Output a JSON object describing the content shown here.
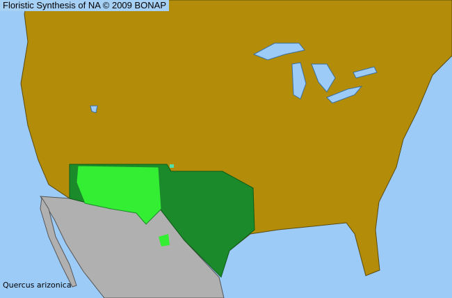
{
  "header": {
    "title": "Floristic Synthesis of NA © 2009 BONAP"
  },
  "map": {
    "species": "Quercus arizonica",
    "colors": {
      "ocean": "#9ccbf7",
      "land_absent": "#b38c0a",
      "outside_range_region": "#b0b0b0",
      "present_dark": "#1a8a2a",
      "present_bright": "#33ee33",
      "boundaries": "#5a4a10"
    }
  }
}
